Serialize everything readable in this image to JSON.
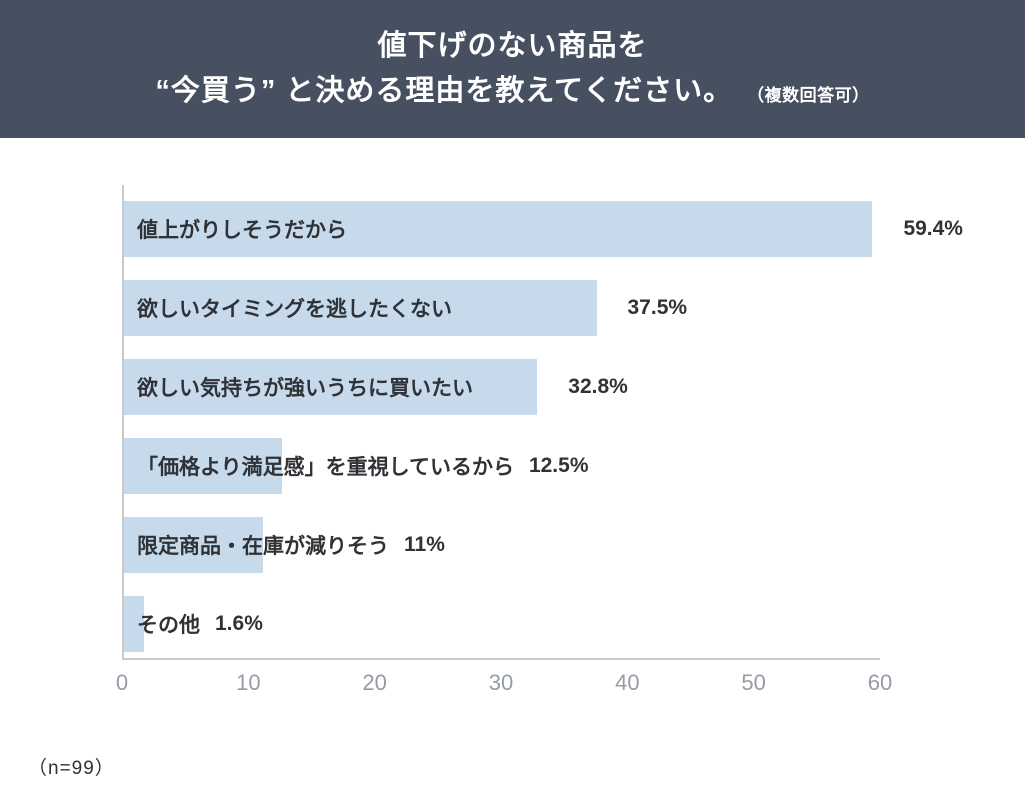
{
  "header": {
    "title_line1": "値下げのない商品を",
    "title_line2": "“今買う” と決める理由を教えてください。",
    "note": "（複数回答可）",
    "bg_color": "#475060"
  },
  "chart_data": {
    "type": "bar",
    "orientation": "horizontal",
    "categories": [
      "値上がりしそうだから",
      "欲しいタイミングを逃したくない",
      "欲しい気持ちが強いうちに買いたい",
      "「価格より満足感」を重視しているから",
      "限定商品・在庫が減りそう",
      "その他"
    ],
    "values": [
      59.4,
      37.5,
      32.8,
      12.5,
      11,
      1.6
    ],
    "value_labels": [
      "59.4%",
      "37.5%",
      "32.8%",
      "12.5%",
      "11%",
      "1.6%"
    ],
    "xlim": [
      0,
      60
    ],
    "x_ticks": [
      0,
      10,
      20,
      30,
      40,
      50,
      60
    ],
    "bar_color": "#c7daec",
    "grid": false,
    "title": "値下げのない商品を “今買う” と決める理由を教えてください。",
    "xlabel": "",
    "ylabel": ""
  },
  "footer": {
    "sample_size": "（n=99）"
  }
}
